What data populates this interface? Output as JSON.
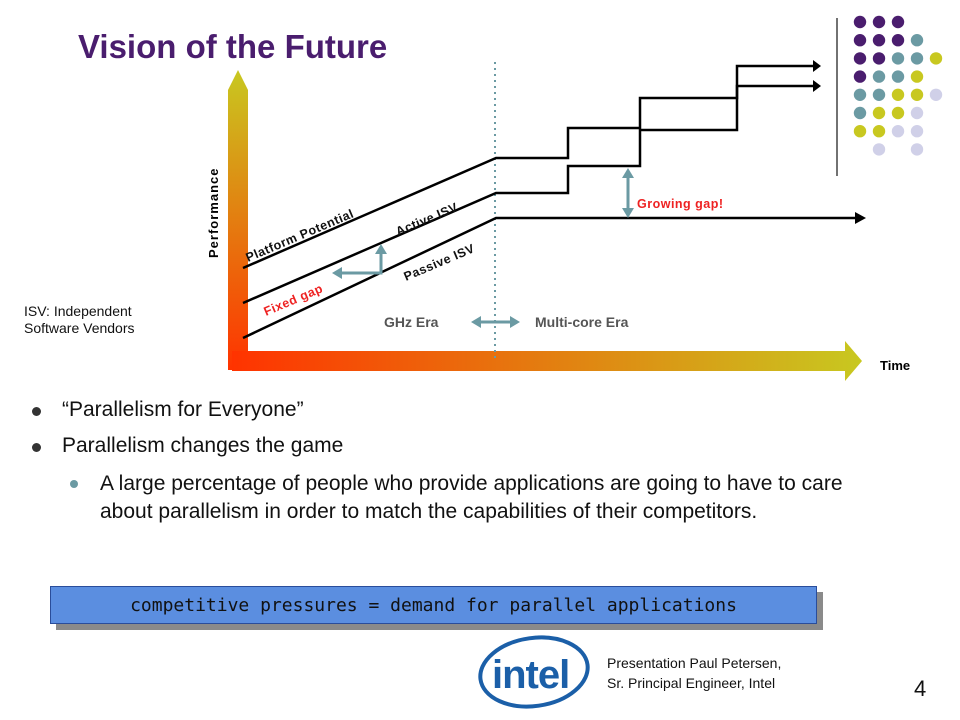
{
  "title": "Vision of the Future",
  "chart_data": {
    "type": "line",
    "title": "",
    "xlabel": "Time",
    "ylabel": "Performance",
    "series": [
      {
        "name": "Platform Potential"
      },
      {
        "name": "Active ISV"
      },
      {
        "name": "Passive ISV"
      }
    ],
    "annotations": {
      "fixed_gap": "Fixed gap",
      "growing_gap": "Growing gap!",
      "era_left": "GHz Era",
      "era_right": "Multi-core Era"
    },
    "colors": {
      "axis_gradient_start": "#ff3300",
      "axis_gradient_end": "#c8c820",
      "gap_arrow": "#6b9aa3",
      "red_label": "#ee2222"
    }
  },
  "isv_note": [
    "ISV: Independent",
    "Software Vendors"
  ],
  "bullets": [
    {
      "level": 1,
      "text": "“Parallelism for Everyone”"
    },
    {
      "level": 1,
      "text": "Parallelism changes the game"
    },
    {
      "level": 2,
      "text": "A large percentage of people who provide applications are going to have to care about parallelism in order to match the capabilities of their competitors."
    }
  ],
  "callout": "competitive pressures = demand for parallel applications",
  "logo": {
    "text": "intel",
    "icon": "intel-logo-icon",
    "color": "#1b5fa8"
  },
  "footer": [
    "Presentation Paul Petersen,",
    "Sr. Principal Engineer, Intel"
  ],
  "page_number": "4",
  "dot_colors": {
    "purple": "#4a1d6e",
    "teal": "#6b9aa3",
    "yellow": "#c8c820",
    "lavender": "#d0d0e8"
  }
}
